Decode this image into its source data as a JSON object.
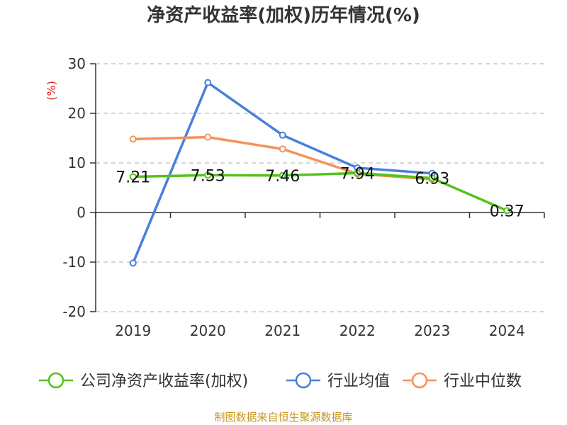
{
  "chart_data": {
    "type": "line",
    "title": "净资产收益率(加权)历年情况(%)",
    "ylabel": "(%)",
    "xlabel": "",
    "ylim": [
      -20,
      30
    ],
    "yticks": [
      "30",
      "20",
      "10",
      "0",
      "-10",
      "-20"
    ],
    "ytick_values": [
      30,
      20,
      10,
      0,
      -10,
      -20
    ],
    "categories": [
      "2019",
      "2020",
      "2021",
      "2022",
      "2023",
      "2024"
    ],
    "grid": true,
    "legend_position": "bottom",
    "series": [
      {
        "name": "公司净资产收益率(加权)",
        "color": "#52c41a",
        "values": [
          7.21,
          7.53,
          7.46,
          7.94,
          6.93,
          0.37
        ],
        "labels": [
          "7.21",
          "7.53",
          "7.46",
          "7.94",
          "6.93",
          "0.37"
        ]
      },
      {
        "name": "行业均值",
        "color": "#4a7fdb",
        "values": [
          -10.2,
          26.2,
          15.6,
          9.0,
          7.9,
          null
        ]
      },
      {
        "name": "行业中位数",
        "color": "#f5915a",
        "values": [
          14.8,
          15.2,
          12.8,
          7.8,
          6.7,
          null
        ]
      }
    ]
  },
  "source": "制图数据来自恒生聚源数据库"
}
